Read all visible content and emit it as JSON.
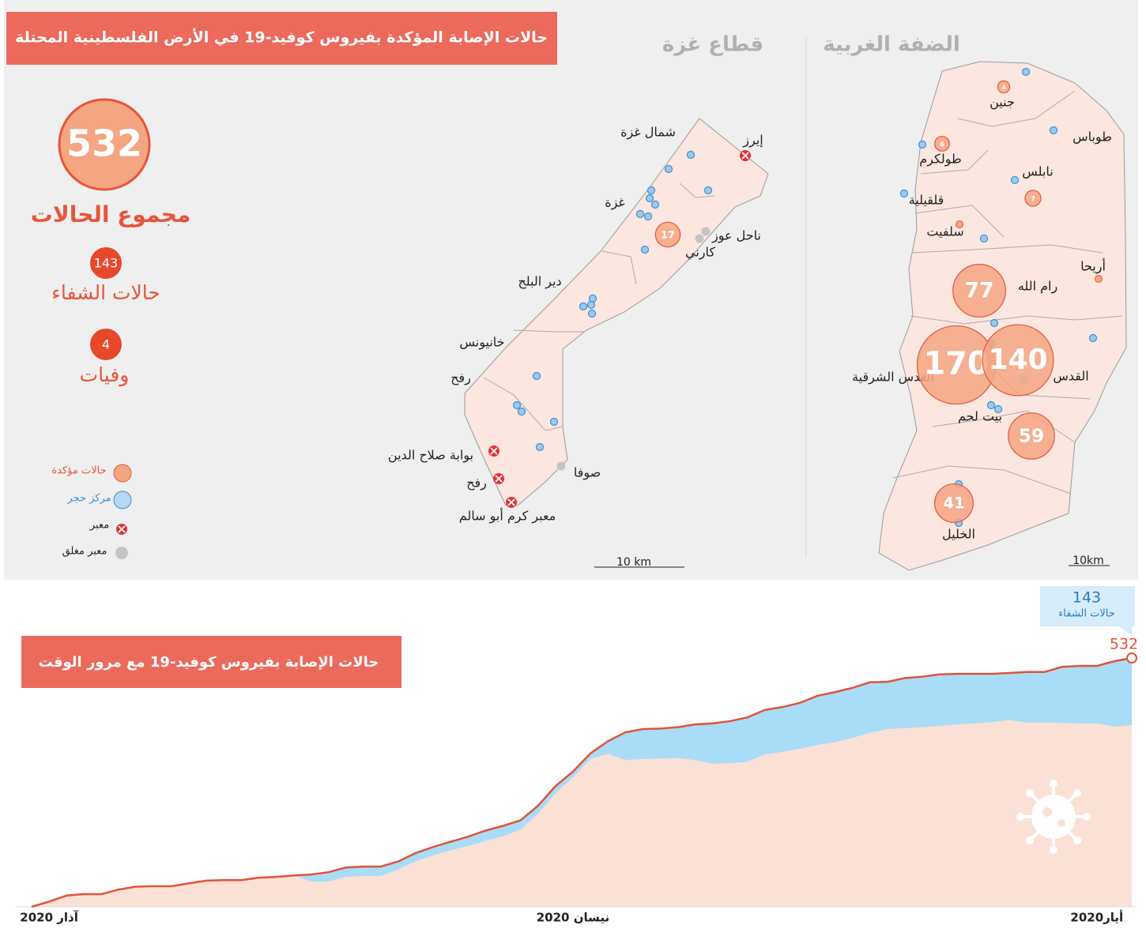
{
  "header": {
    "title": "حالات الإصابة المؤكدة بفيروس كوفيد-19 في الأرض الفلسطينية المحتلة"
  },
  "summary": {
    "total": 532,
    "total_label": "مجموع الحالات",
    "recovered": 143,
    "recovered_label": "حالات الشفاء",
    "deaths": 4,
    "deaths_label": "وفيات"
  },
  "legend": [
    "حالات مؤكدة",
    "مركز حجر",
    "معبر",
    "معبر مغلق"
  ],
  "gaza": {
    "title": "قطاع غزة",
    "scale": "10 km",
    "places": [
      "شمال غزة",
      "إيرز",
      "غزة",
      "ناحل عوز",
      "كارني",
      "دير البلح",
      "خانيونس",
      "رفح",
      "بوابة صلاح الدين",
      "رفح",
      "صوفا",
      "معبر كرم أبو سالم"
    ],
    "cases": [
      17
    ]
  },
  "west_bank": {
    "title": "الضفة الغربية",
    "scale": "10km",
    "places": [
      "جنين",
      "طوباس",
      "طولكرم",
      "نابلس",
      "قلقيلية",
      "سلفيت",
      "أريحا",
      "رام الله",
      "القدس الشرقية",
      "القدس",
      "بيت لحم",
      "الخليل"
    ],
    "cases": [
      4,
      6,
      7,
      77,
      170,
      140,
      59,
      41
    ]
  },
  "chart_data": {
    "type": "area",
    "title": "حالات الإصابة بفيروس كوفيد-19 مع مرور الوقت",
    "categories": [
      null,
      "آذار 2020",
      null,
      null,
      null,
      null,
      null,
      null,
      null,
      null,
      null,
      null,
      null,
      null,
      null,
      null,
      null,
      null,
      null,
      null,
      null,
      null,
      null,
      null,
      null,
      null,
      null,
      null,
      null,
      null,
      null,
      "نيسان 2020",
      null,
      null,
      null,
      null,
      null,
      null,
      null,
      null,
      null,
      null,
      null,
      null,
      null,
      null,
      null,
      null,
      null,
      null,
      null,
      null,
      null,
      null,
      null,
      null,
      null,
      null,
      null,
      null,
      null,
      "أيار2020",
      null,
      null
    ],
    "ylim": [
      0,
      532
    ],
    "series": [
      {
        "color": "#e0533a",
        "values": [
          0,
          11,
          24,
          27,
          27,
          37,
          43,
          44,
          44,
          50,
          56,
          57,
          57,
          62,
          64,
          67,
          69,
          74,
          84,
          86,
          86,
          97,
          115,
          128,
          139,
          150,
          163,
          173,
          185,
          216,
          258,
          289,
          328,
          354,
          373,
          380,
          381,
          384,
          390,
          392,
          397,
          405,
          421,
          427,
          436,
          451,
          459,
          468,
          480,
          481,
          489,
          492,
          497,
          498,
          498,
          498,
          500,
          502,
          502,
          513,
          515,
          515,
          525,
          532
        ]
      },
      {
        "name": "حالات الشفاء",
        "color": "#a9dcf7",
        "values": [
          0,
          0,
          0,
          0,
          0,
          0,
          0,
          0,
          0,
          0,
          0,
          0,
          0,
          0,
          0,
          0,
          15,
          20,
          20,
          20,
          20,
          17,
          17,
          18,
          18,
          20,
          22,
          22,
          20,
          17,
          15,
          12,
          12,
          27,
          59,
          64,
          64,
          66,
          76,
          86,
          90,
          95,
          95,
          96,
          98,
          105,
          107,
          107,
          108,
          101,
          107,
          108,
          110,
          108,
          106,
          103,
          101,
          108,
          108,
          120,
          123,
          123,
          140,
          143
        ]
      }
    ]
  }
}
